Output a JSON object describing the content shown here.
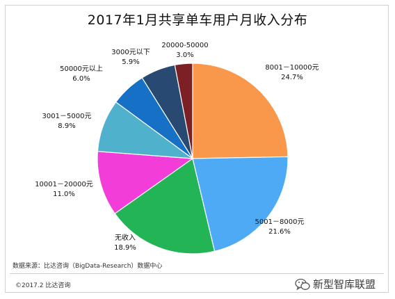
{
  "chart_data": {
    "type": "pie",
    "title": "2017年1月共享单车用户月收入分布",
    "slices": [
      {
        "label": "8001－10000元",
        "value": 24.7,
        "value_label": "24.7%",
        "color": "#f9974a"
      },
      {
        "label": "5001－8000元",
        "value": 21.6,
        "value_label": "21.6%",
        "color": "#4faaf5"
      },
      {
        "label": "无收入",
        "value": 18.9,
        "value_label": "18.9%",
        "color": "#22b455"
      },
      {
        "label": "10001－20000元",
        "value": 11.0,
        "value_label": "11.0%",
        "color": "#f23dd8"
      },
      {
        "label": "3001－5000元",
        "value": 8.9,
        "value_label": "8.9%",
        "color": "#4fb1cc"
      },
      {
        "label": "50000元以上",
        "value": 6.0,
        "value_label": "6.0%",
        "color": "#1670c5"
      },
      {
        "label": "3000元以下",
        "value": 5.9,
        "value_label": "5.9%",
        "color": "#284a72"
      },
      {
        "label": "20000-50000",
        "value": 3.0,
        "value_label": "3.0%",
        "color": "#7c2025"
      }
    ]
  },
  "footer": {
    "source": "数据来源：比达咨询（BigData-Research）数据中心",
    "copyright": "©2017.2 比达咨询",
    "watermark": "新型智库联盟",
    "watermark_icon": "wechat-icon"
  }
}
